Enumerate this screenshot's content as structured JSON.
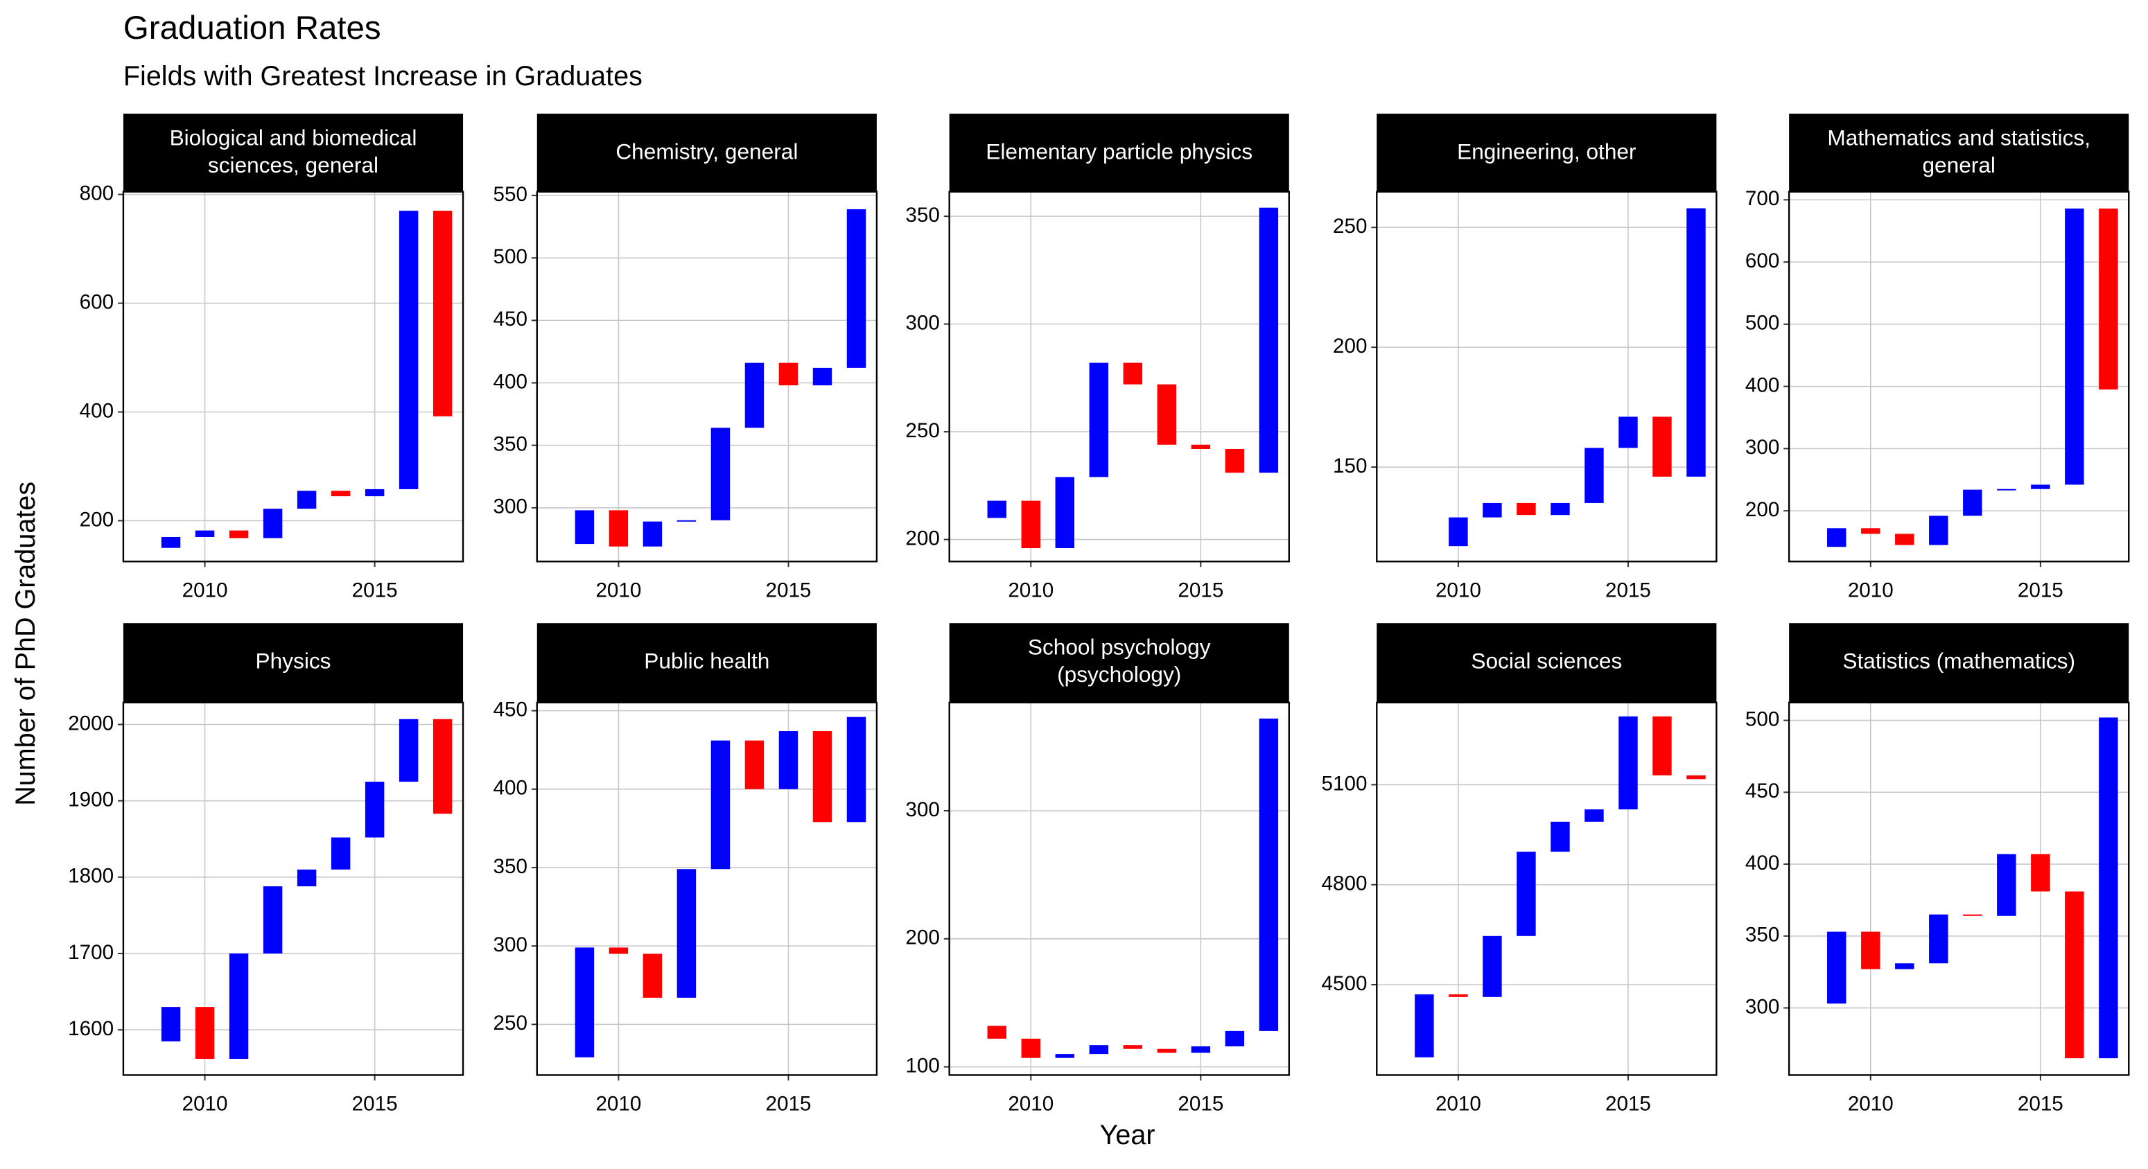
{
  "chart_data": {
    "type": "waterfall",
    "title": "Graduation Rates",
    "subtitle": "Fields with Greatest Increase in Graduates",
    "x_label": "Year",
    "y_label": "Number of PhD Graduates",
    "increase_color": "#0000ff",
    "decrease_color": "#ff0000",
    "grid": true,
    "xlim": [
      2007.6,
      2017.6
    ],
    "xticks": [
      2010,
      2015
    ],
    "panels": [
      {
        "title": "Biological and biomedical\nsciences, general",
        "start": 150,
        "x": [
          2009,
          2010,
          2011,
          2012,
          2013,
          2014,
          2015,
          2016,
          2017
        ],
        "values": [
          170,
          182,
          168,
          222,
          255,
          245,
          258,
          770,
          392
        ],
        "ylim": [
          125,
          805
        ],
        "yticks": [
          200,
          400,
          600,
          800
        ]
      },
      {
        "title": "Chemistry, general",
        "start": 271,
        "x": [
          2009,
          2010,
          2011,
          2012,
          2013,
          2014,
          2015,
          2016,
          2017
        ],
        "values": [
          298,
          269,
          289,
          290,
          364,
          416,
          398,
          412,
          539
        ],
        "ylim": [
          257,
          553
        ],
        "yticks": [
          300,
          350,
          400,
          450,
          500,
          550
        ]
      },
      {
        "title": "Elementary particle physics",
        "start": 210,
        "x": [
          2009,
          2010,
          2011,
          2012,
          2013,
          2014,
          2015,
          2016,
          2017
        ],
        "values": [
          218,
          196,
          229,
          282,
          272,
          244,
          242,
          231,
          354
        ],
        "ylim": [
          189.8,
          361.4
        ],
        "yticks": [
          200,
          250,
          300,
          350
        ]
      },
      {
        "title": "Engineering, other",
        "start": 117,
        "x": [
          2010,
          2011,
          2012,
          2013,
          2014,
          2015,
          2016,
          2017
        ],
        "values": [
          129,
          135,
          130,
          135,
          158,
          171,
          146,
          258
        ],
        "ylim": [
          110.6,
          264.9
        ],
        "yticks": [
          150,
          200,
          250
        ]
      },
      {
        "title": "Mathematics and statistics,\ngeneral",
        "start": 142,
        "x": [
          2009,
          2010,
          2011,
          2012,
          2013,
          2014,
          2015,
          2016,
          2017
        ],
        "values": [
          172,
          163,
          145,
          192,
          234,
          235,
          242,
          686,
          395
        ],
        "ylim": [
          118.5,
          713
        ],
        "yticks": [
          200,
          300,
          400,
          500,
          600,
          700
        ]
      },
      {
        "title": "Physics",
        "start": 1585,
        "x": [
          2009,
          2010,
          2011,
          2012,
          2013,
          2014,
          2015,
          2016,
          2017
        ],
        "values": [
          1630,
          1562,
          1700,
          1788,
          1810,
          1852,
          1925,
          2007,
          1883
        ],
        "ylim": [
          1540.8,
          2028.7
        ],
        "yticks": [
          1600,
          1700,
          1800,
          1900,
          2000
        ]
      },
      {
        "title": "Public health",
        "start": 229,
        "x": [
          2009,
          2010,
          2011,
          2012,
          2013,
          2014,
          2015,
          2016,
          2017
        ],
        "values": [
          299,
          295,
          267,
          349,
          431,
          400,
          437,
          379,
          446
        ],
        "ylim": [
          217.7,
          455.2
        ],
        "yticks": [
          250,
          300,
          350,
          400,
          450
        ]
      },
      {
        "title": "School psychology\n(psychology)",
        "start": 132,
        "x": [
          2009,
          2010,
          2011,
          2012,
          2013,
          2014,
          2015,
          2016,
          2017
        ],
        "values": [
          122,
          107,
          110,
          117,
          114,
          111,
          116,
          128,
          372
        ],
        "ylim": [
          93.6,
          384.5
        ],
        "yticks": [
          100,
          200,
          300
        ]
      },
      {
        "title": "Social sciences",
        "start": 4282,
        "x": [
          2009,
          2010,
          2011,
          2012,
          2013,
          2014,
          2015,
          2016,
          2017
        ],
        "values": [
          4471,
          4463,
          4646,
          4899,
          4989,
          5026,
          5305,
          5128,
          5117
        ],
        "ylim": [
          4228.8,
          5346.6
        ],
        "yticks": [
          4500,
          4800,
          5100
        ]
      },
      {
        "title": "Statistics (mathematics)",
        "start": 303,
        "x": [
          2009,
          2010,
          2011,
          2012,
          2013,
          2014,
          2015,
          2016,
          2017
        ],
        "values": [
          353,
          327,
          331,
          365,
          364,
          407,
          381,
          265,
          502
        ],
        "ylim": [
          253.3,
          512.4
        ],
        "yticks": [
          300,
          350,
          400,
          450,
          500
        ]
      }
    ]
  }
}
